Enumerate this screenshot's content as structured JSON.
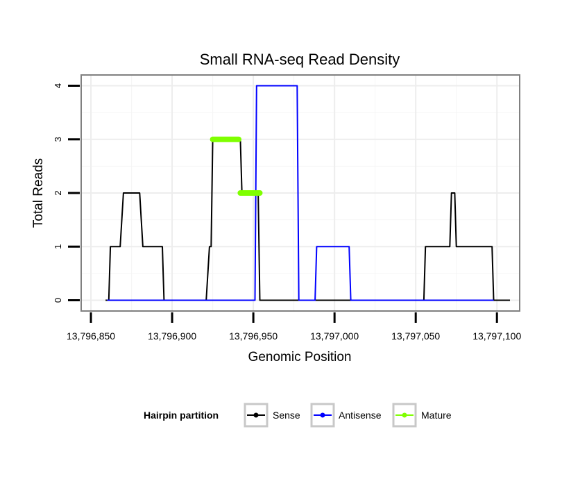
{
  "chart_data": {
    "type": "line",
    "title": "Small RNA-seq Read Density",
    "xlabel": "Genomic Position",
    "ylabel": "Total Reads",
    "xlim": [
      13796844,
      13797114
    ],
    "ylim": [
      -0.2,
      4.2
    ],
    "x_ticks": [
      13796850,
      13796900,
      13796950,
      13797000,
      13797050,
      13797100
    ],
    "x_tick_labels": [
      "13,796,850",
      "13,796,900",
      "13,796,950",
      "13,797,000",
      "13,797,050",
      "13,797,100"
    ],
    "y_ticks": [
      0,
      1,
      2,
      3,
      4
    ],
    "y_tick_labels": [
      "0",
      "1",
      "2",
      "3",
      "4"
    ],
    "grid": true,
    "legend": {
      "title": "Hairpin partition",
      "position": "bottom",
      "entries": [
        "Sense",
        "Antisense",
        "Mature"
      ]
    },
    "series": [
      {
        "name": "Sense",
        "color": "#000000",
        "x": [
          13796859,
          13796861,
          13796862,
          13796868,
          13796870,
          13796880,
          13796882,
          13796894,
          13796895,
          13796921,
          13796923,
          13796924,
          13796925,
          13796942,
          13796943,
          13796950,
          13796951,
          13796953,
          13796954,
          13796986,
          13797055,
          13797056,
          13797071,
          13797072,
          13797074,
          13797075,
          13797097,
          13797098,
          13797108
        ],
        "values": [
          0,
          0,
          1,
          1,
          2,
          2,
          1,
          1,
          0,
          0,
          1,
          1,
          3,
          3,
          2,
          2,
          2,
          2,
          0,
          0,
          0,
          1,
          1,
          2,
          2,
          1,
          1,
          0,
          0
        ]
      },
      {
        "name": "Antisense",
        "color": "#0000ff",
        "x": [
          13796860,
          13796951,
          13796952,
          13796977,
          13796978,
          13796988,
          13796989,
          13797009,
          13797010,
          13797098
        ],
        "values": [
          0,
          0,
          4,
          4,
          0,
          0,
          1,
          1,
          0,
          0
        ]
      },
      {
        "name": "Mature",
        "color": "#7fff00",
        "x": [
          13796925,
          13796941,
          13796942,
          13796954
        ],
        "values": [
          3,
          3,
          2,
          2
        ],
        "segments": [
          [
            0,
            1
          ],
          [
            2,
            3
          ]
        ]
      }
    ]
  }
}
